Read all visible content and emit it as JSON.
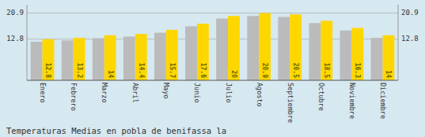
{
  "chart_data": {
    "type": "bar",
    "title": "Temperaturas Medias en pobla de benifassa la",
    "categories": [
      "Enero",
      "Febrero",
      "Marzo",
      "Abril",
      "Mayo",
      "Junio",
      "Julio",
      "Agosto",
      "Septiembre",
      "Octubre",
      "Noviembre",
      "Diciembre"
    ],
    "series": [
      {
        "color": "#BBBBBB",
        "values": [
          12.0,
          12.4,
          13.1,
          13.6,
          14.8,
          16.8,
          19.2,
          20.0,
          19.7,
          17.8,
          15.5,
          13.2
        ]
      },
      {
        "color": "#FFD700",
        "data_labels": true,
        "values": [
          12.8,
          13.2,
          14.0,
          14.4,
          15.7,
          17.6,
          20.0,
          20.9,
          20.5,
          18.5,
          16.3,
          14.0
        ]
      }
    ],
    "ylim": [
      0,
      23.5
    ],
    "yticks": [
      12.8,
      20.9
    ],
    "grid": true
  }
}
